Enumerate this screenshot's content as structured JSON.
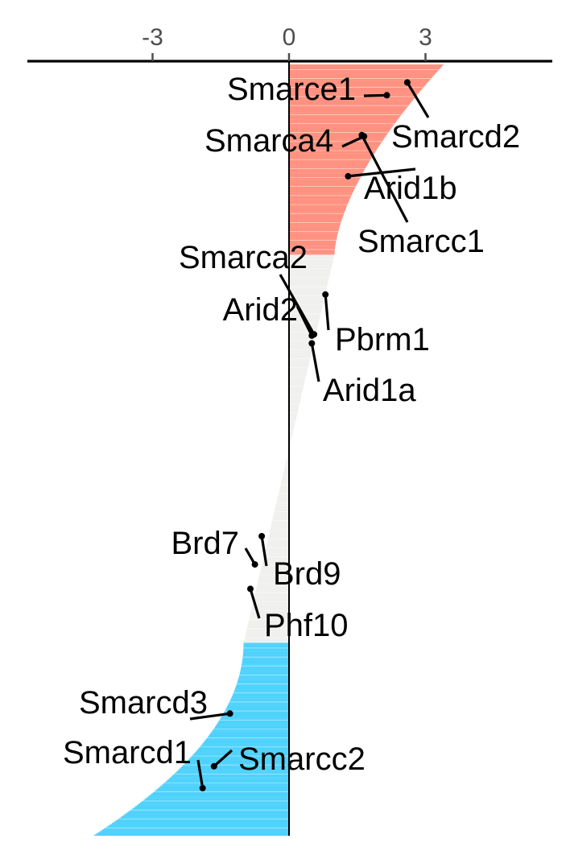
{
  "chart_data": {
    "type": "bar",
    "orientation": "horizontal",
    "description_axis": "ranked genes",
    "x_ticks": [
      -3,
      0,
      3
    ],
    "xlim": [
      -5.8,
      5.8
    ],
    "colors": {
      "positive_significant": "#ff9180",
      "negative_significant": "#4fd2fc",
      "not_significant": "#f0f0ee",
      "axis": "#000000"
    },
    "rank_count": 600,
    "segments": [
      {
        "group": "positive_significant",
        "from_rank": 0,
        "to_rank": 148,
        "start_value": 3.4,
        "end_value": 1.0
      },
      {
        "group": "not_significant",
        "from_rank": 148,
        "to_rank": 450,
        "start_value": 1.0,
        "end_value": -1.0
      },
      {
        "group": "negative_significant",
        "from_rank": 450,
        "to_rank": 600,
        "start_value": -1.0,
        "end_value": -4.3
      }
    ],
    "highlighted_genes": [
      {
        "gene": "Smarcd2",
        "rank": 14,
        "value": 2.6
      },
      {
        "gene": "Smarce1",
        "rank": 24,
        "value": 2.15
      },
      {
        "gene": "Smarcc1",
        "rank": 55,
        "value": 1.6
      },
      {
        "gene": "Smarca4",
        "rank": 56,
        "value": 1.65
      },
      {
        "gene": "Arid1b",
        "rank": 87,
        "value": 1.3
      },
      {
        "gene": "Pbrm1",
        "rank": 179,
        "value": 0.8
      },
      {
        "gene": "Smarca2",
        "rank": 210,
        "value": 0.55
      },
      {
        "gene": "Arid2",
        "rank": 211,
        "value": 0.5
      },
      {
        "gene": "Arid1a",
        "rank": 217,
        "value": 0.5
      },
      {
        "gene": "Brd9",
        "rank": 367,
        "value": -0.6
      },
      {
        "gene": "Brd7",
        "rank": 389,
        "value": -0.75
      },
      {
        "gene": "Phf10",
        "rank": 408,
        "value": -0.85
      },
      {
        "gene": "Smarcd3",
        "rank": 505,
        "value": -1.3
      },
      {
        "gene": "Smarcc2",
        "rank": 546,
        "value": -1.65
      },
      {
        "gene": "Smarcd1",
        "rank": 563,
        "value": -1.9
      }
    ]
  }
}
